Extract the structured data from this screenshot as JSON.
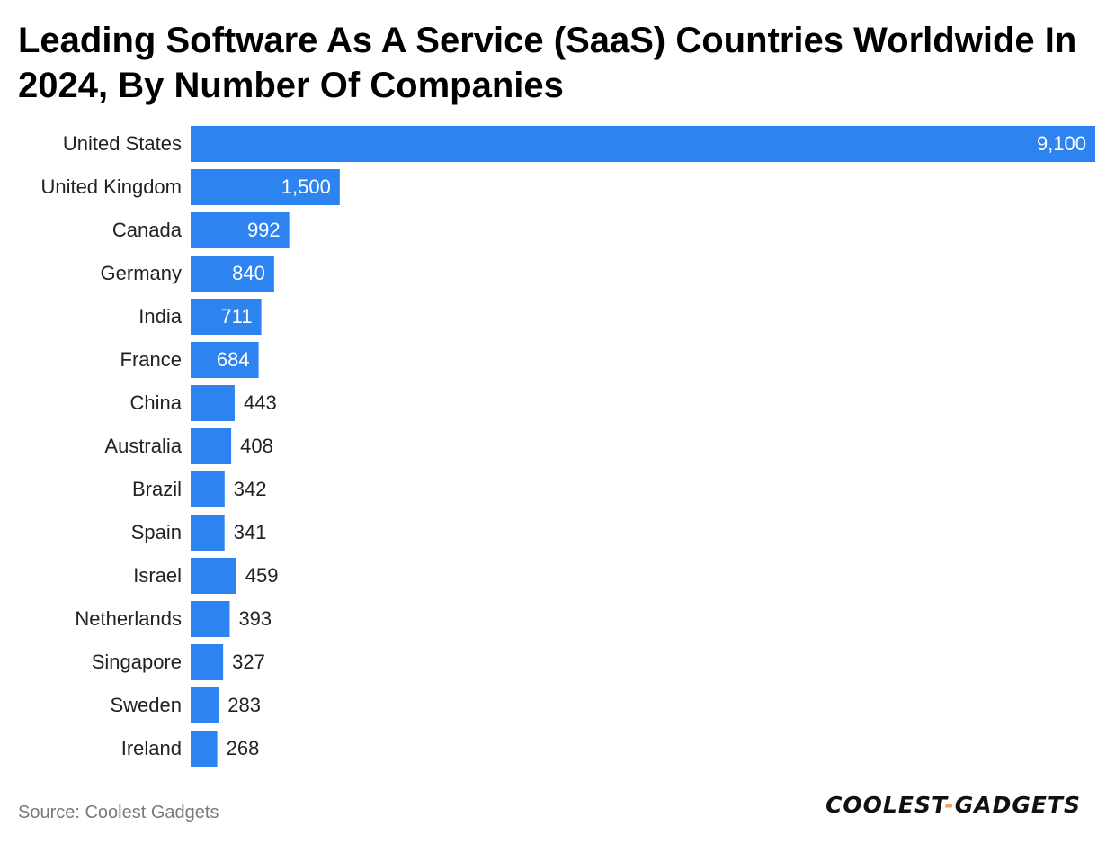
{
  "title": "Leading Software As A Service (SaaS) Countries Worldwide In 2024, By Number Of Companies",
  "source": "Source: Coolest Gadgets",
  "brand": {
    "left": "COOLEST",
    "dash": "-",
    "right": "GADGETS"
  },
  "colors": {
    "bar": "#2d83f0",
    "label_inside": "#ffffff",
    "label_outside": "#222222",
    "category": "#222222"
  },
  "chart_data": {
    "type": "bar",
    "orientation": "horizontal",
    "title": "Leading Software As A Service (SaaS) Countries Worldwide In 2024, By Number Of Companies",
    "xlabel": "",
    "ylabel": "",
    "xlim": [
      0,
      9100
    ],
    "grid": false,
    "categories": [
      "United States",
      "United Kingdom",
      "Canada",
      "Germany",
      "India",
      "France",
      "China",
      "Australia",
      "Brazil",
      "Spain",
      "Israel",
      "Netherlands",
      "Singapore",
      "Sweden",
      "Ireland"
    ],
    "values": [
      9100,
      1500,
      992,
      840,
      711,
      684,
      443,
      408,
      342,
      341,
      459,
      393,
      327,
      283,
      268
    ],
    "value_labels": [
      "9,100",
      "1,500",
      "992",
      "840",
      "711",
      "684",
      "443",
      "408",
      "342",
      "341",
      "459",
      "393",
      "327",
      "283",
      "268"
    ]
  }
}
